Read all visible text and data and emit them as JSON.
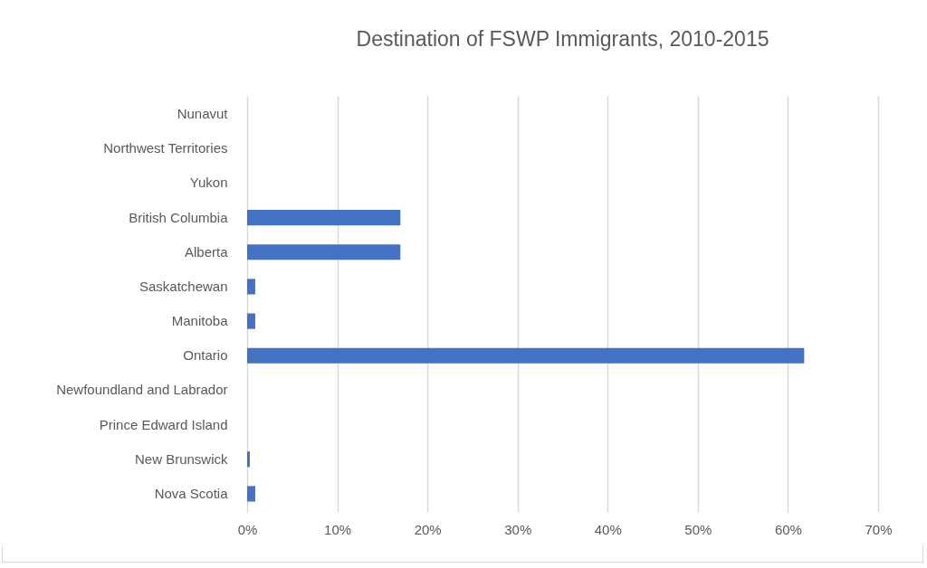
{
  "chart_data": {
    "type": "bar",
    "title": "Destination of FSWP Immigrants, 2010-2015",
    "orientation": "horizontal",
    "categories": [
      "Nunavut",
      "Northwest Territories",
      "Yukon",
      "British Columbia",
      "Alberta",
      "Saskatchewan",
      "Manitoba",
      "Ontario",
      "Newfoundland and Labrador",
      "Prince Edward Island",
      "New Brunswick",
      "Nova Scotia"
    ],
    "values": [
      0,
      0,
      0,
      17,
      17,
      0.9,
      0.9,
      61.8,
      0,
      0,
      0.3,
      0.9
    ],
    "color": "#4472c4",
    "xlim": [
      0,
      70
    ],
    "xticks": [
      {
        "value": 0,
        "label": "0%"
      },
      {
        "value": 10,
        "label": "10%"
      },
      {
        "value": 20,
        "label": "20%"
      },
      {
        "value": 30,
        "label": "30%"
      },
      {
        "value": 40,
        "label": "40%"
      },
      {
        "value": 50,
        "label": "50%"
      },
      {
        "value": 60,
        "label": "60%"
      },
      {
        "value": 70,
        "label": "70%"
      }
    ],
    "grid": "x"
  }
}
